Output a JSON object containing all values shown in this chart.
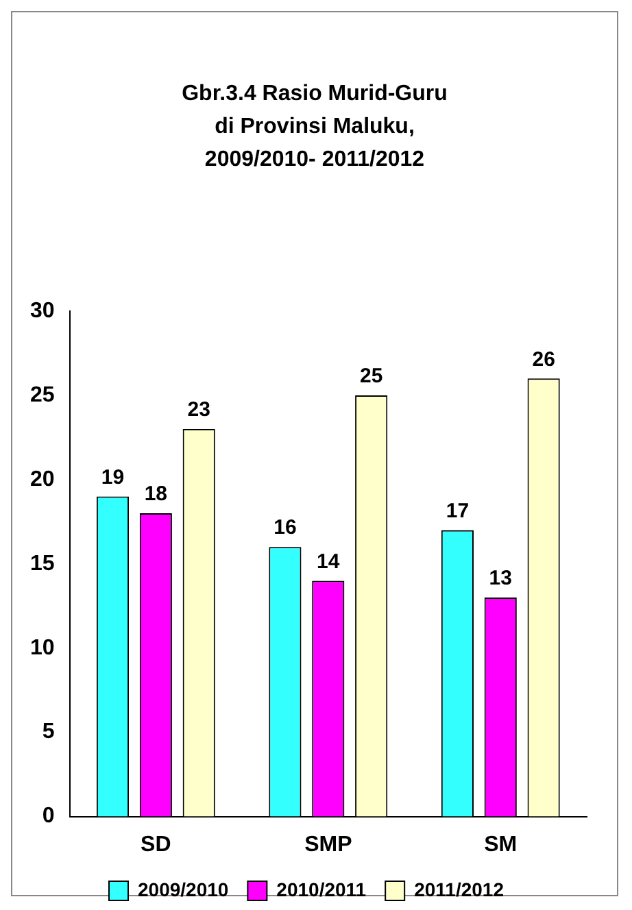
{
  "chart_data": {
    "type": "bar",
    "title": "Gbr.3.4 Rasio Murid-Guru di Provinsi Maluku, 2009/2010- 2011/2012",
    "categories": [
      "SD",
      "SMP",
      "SM"
    ],
    "series": [
      {
        "name": "2009/2010",
        "color": "#33ffff",
        "values": [
          19,
          16,
          17
        ]
      },
      {
        "name": "2010/2011",
        "color": "#ff00ff",
        "values": [
          18,
          14,
          13
        ]
      },
      {
        "name": "2011/2012",
        "color": "#ffffcc",
        "values": [
          23,
          25,
          26
        ]
      }
    ],
    "ylim": [
      0,
      30
    ],
    "yticks": [
      0,
      5,
      10,
      15,
      20,
      25,
      30
    ],
    "grid": false,
    "legend": "bottom",
    "data_labels": true
  }
}
